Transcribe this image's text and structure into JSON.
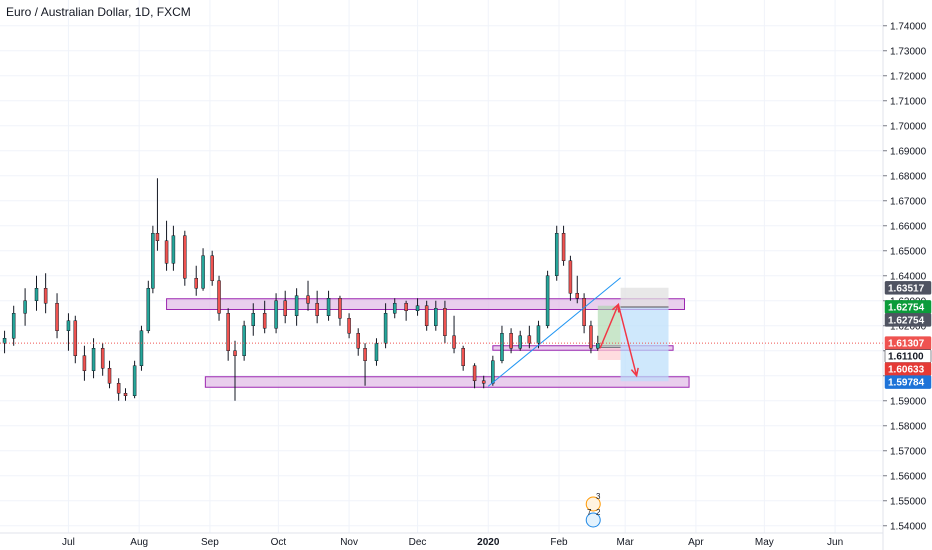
{
  "chart_data": {
    "type": "candlestick",
    "title": "Euro / Australian Dollar, 1D, FXCM",
    "ylim": [
      1.5395,
      1.7455
    ],
    "y_ticks": [
      "1.74000",
      "1.73000",
      "1.72000",
      "1.71000",
      "1.70000",
      "1.69000",
      "1.68000",
      "1.67000",
      "1.66000",
      "1.65000",
      "1.64000",
      "1.63000",
      "1.62000",
      "1.61000",
      "1.60000",
      "1.59000",
      "1.58000",
      "1.57000",
      "1.56000",
      "1.55000",
      "1.54000"
    ],
    "x_tick_labels": [
      "Jul",
      "Aug",
      "Sep",
      "Oct",
      "Nov",
      "Dec",
      "2020",
      "Feb",
      "Mar",
      "Apr",
      "May",
      "Jun"
    ],
    "x_range": [
      "2019-06-01",
      "2020-06-22"
    ],
    "x_ticks": [
      "2019-07-01",
      "2019-08-01",
      "2019-09-01",
      "2019-10-01",
      "2019-11-01",
      "2019-12-01",
      "2020-01-01",
      "2020-02-01",
      "2020-03-01",
      "2020-04-01",
      "2020-05-01",
      "2020-06-01"
    ],
    "candles": [
      {
        "date": "2019-06-03",
        "o": 1.613,
        "h": 1.618,
        "l": 1.609,
        "c": 1.615
      },
      {
        "date": "2019-06-07",
        "o": 1.615,
        "h": 1.628,
        "l": 1.612,
        "c": 1.625
      },
      {
        "date": "2019-06-12",
        "o": 1.625,
        "h": 1.635,
        "l": 1.62,
        "c": 1.63
      },
      {
        "date": "2019-06-17",
        "o": 1.63,
        "h": 1.64,
        "l": 1.626,
        "c": 1.635
      },
      {
        "date": "2019-06-21",
        "o": 1.635,
        "h": 1.641,
        "l": 1.625,
        "c": 1.629
      },
      {
        "date": "2019-06-26",
        "o": 1.629,
        "h": 1.633,
        "l": 1.615,
        "c": 1.618
      },
      {
        "date": "2019-07-01",
        "o": 1.618,
        "h": 1.625,
        "l": 1.61,
        "c": 1.622
      },
      {
        "date": "2019-07-04",
        "o": 1.622,
        "h": 1.624,
        "l": 1.605,
        "c": 1.608
      },
      {
        "date": "2019-07-08",
        "o": 1.608,
        "h": 1.612,
        "l": 1.598,
        "c": 1.602
      },
      {
        "date": "2019-07-12",
        "o": 1.602,
        "h": 1.615,
        "l": 1.599,
        "c": 1.611
      },
      {
        "date": "2019-07-16",
        "o": 1.611,
        "h": 1.613,
        "l": 1.6,
        "c": 1.603
      },
      {
        "date": "2019-07-19",
        "o": 1.603,
        "h": 1.606,
        "l": 1.595,
        "c": 1.597
      },
      {
        "date": "2019-07-23",
        "o": 1.597,
        "h": 1.599,
        "l": 1.59,
        "c": 1.593
      },
      {
        "date": "2019-07-26",
        "o": 1.593,
        "h": 1.595,
        "l": 1.59,
        "c": 1.592
      },
      {
        "date": "2019-07-30",
        "o": 1.592,
        "h": 1.606,
        "l": 1.591,
        "c": 1.604
      },
      {
        "date": "2019-08-02",
        "o": 1.604,
        "h": 1.62,
        "l": 1.602,
        "c": 1.618
      },
      {
        "date": "2019-08-05",
        "o": 1.618,
        "h": 1.638,
        "l": 1.617,
        "c": 1.635
      },
      {
        "date": "2019-08-07",
        "o": 1.635,
        "h": 1.66,
        "l": 1.633,
        "c": 1.657
      },
      {
        "date": "2019-08-09",
        "o": 1.657,
        "h": 1.679,
        "l": 1.65,
        "c": 1.654
      },
      {
        "date": "2019-08-13",
        "o": 1.654,
        "h": 1.662,
        "l": 1.642,
        "c": 1.645
      },
      {
        "date": "2019-08-16",
        "o": 1.645,
        "h": 1.66,
        "l": 1.642,
        "c": 1.656
      },
      {
        "date": "2019-08-21",
        "o": 1.656,
        "h": 1.658,
        "l": 1.636,
        "c": 1.639
      },
      {
        "date": "2019-08-26",
        "o": 1.639,
        "h": 1.644,
        "l": 1.632,
        "c": 1.635
      },
      {
        "date": "2019-08-29",
        "o": 1.635,
        "h": 1.651,
        "l": 1.634,
        "c": 1.648
      },
      {
        "date": "2019-09-02",
        "o": 1.648,
        "h": 1.65,
        "l": 1.636,
        "c": 1.638
      },
      {
        "date": "2019-09-05",
        "o": 1.638,
        "h": 1.64,
        "l": 1.622,
        "c": 1.625
      },
      {
        "date": "2019-09-09",
        "o": 1.625,
        "h": 1.627,
        "l": 1.606,
        "c": 1.61
      },
      {
        "date": "2019-09-12",
        "o": 1.61,
        "h": 1.614,
        "l": 1.59,
        "c": 1.608
      },
      {
        "date": "2019-09-16",
        "o": 1.608,
        "h": 1.622,
        "l": 1.606,
        "c": 1.62
      },
      {
        "date": "2019-09-20",
        "o": 1.62,
        "h": 1.629,
        "l": 1.616,
        "c": 1.625
      },
      {
        "date": "2019-09-25",
        "o": 1.625,
        "h": 1.63,
        "l": 1.617,
        "c": 1.619
      },
      {
        "date": "2019-09-30",
        "o": 1.619,
        "h": 1.633,
        "l": 1.617,
        "c": 1.63
      },
      {
        "date": "2019-10-04",
        "o": 1.63,
        "h": 1.634,
        "l": 1.621,
        "c": 1.624
      },
      {
        "date": "2019-10-09",
        "o": 1.624,
        "h": 1.635,
        "l": 1.62,
        "c": 1.632
      },
      {
        "date": "2019-10-14",
        "o": 1.632,
        "h": 1.638,
        "l": 1.626,
        "c": 1.629
      },
      {
        "date": "2019-10-18",
        "o": 1.629,
        "h": 1.634,
        "l": 1.621,
        "c": 1.624
      },
      {
        "date": "2019-10-23",
        "o": 1.624,
        "h": 1.634,
        "l": 1.622,
        "c": 1.631
      },
      {
        "date": "2019-10-28",
        "o": 1.631,
        "h": 1.632,
        "l": 1.62,
        "c": 1.623
      },
      {
        "date": "2019-11-01",
        "o": 1.623,
        "h": 1.625,
        "l": 1.615,
        "c": 1.617
      },
      {
        "date": "2019-11-05",
        "o": 1.617,
        "h": 1.619,
        "l": 1.608,
        "c": 1.611
      },
      {
        "date": "2019-11-08",
        "o": 1.611,
        "h": 1.613,
        "l": 1.596,
        "c": 1.606
      },
      {
        "date": "2019-11-13",
        "o": 1.606,
        "h": 1.615,
        "l": 1.604,
        "c": 1.613
      },
      {
        "date": "2019-11-17",
        "o": 1.613,
        "h": 1.629,
        "l": 1.611,
        "c": 1.625
      },
      {
        "date": "2019-11-21",
        "o": 1.625,
        "h": 1.631,
        "l": 1.623,
        "c": 1.629
      },
      {
        "date": "2019-11-26",
        "o": 1.629,
        "h": 1.63,
        "l": 1.622,
        "c": 1.626
      },
      {
        "date": "2019-12-01",
        "o": 1.626,
        "h": 1.631,
        "l": 1.624,
        "c": 1.628
      },
      {
        "date": "2019-12-05",
        "o": 1.628,
        "h": 1.63,
        "l": 1.618,
        "c": 1.62
      },
      {
        "date": "2019-12-09",
        "o": 1.62,
        "h": 1.63,
        "l": 1.618,
        "c": 1.627
      },
      {
        "date": "2019-12-13",
        "o": 1.627,
        "h": 1.63,
        "l": 1.613,
        "c": 1.616
      },
      {
        "date": "2019-12-17",
        "o": 1.616,
        "h": 1.624,
        "l": 1.609,
        "c": 1.611
      },
      {
        "date": "2019-12-21",
        "o": 1.611,
        "h": 1.612,
        "l": 1.602,
        "c": 1.604
      },
      {
        "date": "2019-12-26",
        "o": 1.604,
        "h": 1.605,
        "l": 1.595,
        "c": 1.598
      },
      {
        "date": "2019-12-30",
        "o": 1.598,
        "h": 1.6,
        "l": 1.595,
        "c": 1.597
      },
      {
        "date": "2020-01-03",
        "o": 1.597,
        "h": 1.608,
        "l": 1.596,
        "c": 1.606
      },
      {
        "date": "2020-01-07",
        "o": 1.606,
        "h": 1.62,
        "l": 1.605,
        "c": 1.617
      },
      {
        "date": "2020-01-11",
        "o": 1.617,
        "h": 1.619,
        "l": 1.609,
        "c": 1.611
      },
      {
        "date": "2020-01-15",
        "o": 1.611,
        "h": 1.618,
        "l": 1.61,
        "c": 1.616
      },
      {
        "date": "2020-01-19",
        "o": 1.616,
        "h": 1.62,
        "l": 1.611,
        "c": 1.613
      },
      {
        "date": "2020-01-23",
        "o": 1.613,
        "h": 1.622,
        "l": 1.611,
        "c": 1.62
      },
      {
        "date": "2020-01-27",
        "o": 1.62,
        "h": 1.642,
        "l": 1.619,
        "c": 1.64
      },
      {
        "date": "2020-01-31",
        "o": 1.64,
        "h": 1.66,
        "l": 1.638,
        "c": 1.657
      },
      {
        "date": "2020-02-03",
        "o": 1.657,
        "h": 1.66,
        "l": 1.644,
        "c": 1.646
      },
      {
        "date": "2020-02-06",
        "o": 1.646,
        "h": 1.648,
        "l": 1.63,
        "c": 1.633
      },
      {
        "date": "2020-02-09",
        "o": 1.633,
        "h": 1.64,
        "l": 1.629,
        "c": 1.631
      },
      {
        "date": "2020-02-12",
        "o": 1.631,
        "h": 1.633,
        "l": 1.617,
        "c": 1.62
      },
      {
        "date": "2020-02-15",
        "o": 1.62,
        "h": 1.622,
        "l": 1.609,
        "c": 1.611
      },
      {
        "date": "2020-02-18",
        "o": 1.611,
        "h": 1.616,
        "l": 1.61,
        "c": 1.613
      }
    ],
    "zones": [
      {
        "from": "2019-08-13",
        "to": "2020-03-27",
        "low": 1.6265,
        "high": 1.6308
      },
      {
        "from": "2020-01-03",
        "to": "2020-03-22",
        "low": 1.6102,
        "high": 1.612
      },
      {
        "from": "2019-08-30",
        "to": "2020-03-29",
        "low": 1.5954,
        "high": 1.5996
      }
    ],
    "trendline": {
      "from": {
        "date": "2020-01-01",
        "price": 1.5958
      },
      "to": {
        "date": "2020-02-28",
        "price": 1.6392
      }
    },
    "position_long": {
      "from": "2020-02-18",
      "to": "2020-02-28",
      "entry": 1.6113,
      "target": 1.628,
      "stop": 1.6063
    },
    "position_short": {
      "from": "2020-02-28",
      "to": "2020-03-20",
      "entry": 1.6275,
      "target": 1.5978,
      "stop": 1.6352
    },
    "arrows": [
      [
        {
          "date": "2020-02-19",
          "price": 1.611
        },
        {
          "date": "2020-02-27",
          "price": 1.6285
        }
      ],
      [
        {
          "date": "2020-02-27",
          "price": 1.6285
        },
        {
          "date": "2020-03-06",
          "price": 1.6
        }
      ]
    ],
    "current_price": 1.61307,
    "price_badges": [
      {
        "label": "1.63517",
        "value": 1.63517,
        "bg": "#4f5361",
        "fg": "#ffffff"
      },
      {
        "label": "1.62754",
        "value": 1.62754,
        "bg": "#0b9b3a",
        "fg": "#ffffff"
      },
      {
        "label": "1.62754",
        "value": 1.62754,
        "bg": "#4f5361",
        "fg": "#ffffff"
      },
      {
        "label": "1.61307",
        "value": 1.61307,
        "bg": "#ef5350",
        "fg": "#ffffff"
      },
      {
        "label": "1.61100",
        "value": 1.611,
        "bg": "#ffffff",
        "fg": "#131722"
      },
      {
        "label": "1.60633",
        "value": 1.60633,
        "bg": "#e53935",
        "fg": "#ffffff"
      },
      {
        "label": "1.59784",
        "value": 1.59784,
        "bg": "#1e73d8",
        "fg": "#ffffff"
      }
    ],
    "events": [
      "3",
      "7",
      "2"
    ],
    "colors": {
      "up": "#26a69a",
      "down": "#ef5350",
      "zone_fill": "#e1bee7",
      "zone_stroke": "#9c27b0",
      "trend": "#2196f3",
      "arrow": "#f23645",
      "target_fill": "#a5d6a7",
      "stop_fill": "#ffcdd2",
      "short_target_fill": "#bbdefb",
      "short_stop_fill": "#e0e0e0"
    }
  }
}
